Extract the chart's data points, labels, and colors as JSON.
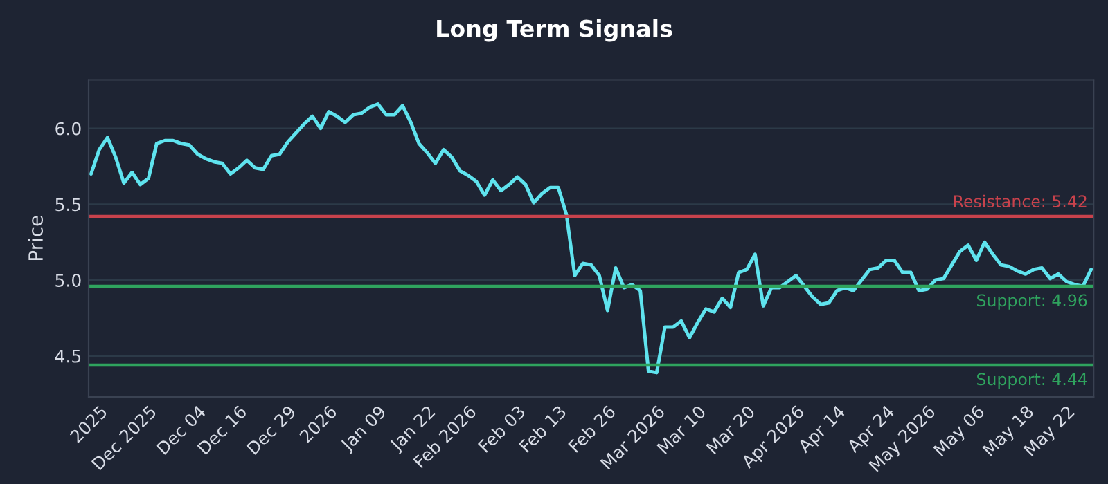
{
  "chart_data": {
    "type": "line",
    "title": "Long Term Signals",
    "ylabel": "Price",
    "categories": [
      null,
      "2025",
      null,
      null,
      null,
      null,
      null,
      "Dec 2025",
      null,
      null,
      null,
      null,
      null,
      "Dec 04",
      null,
      null,
      null,
      null,
      "Dec 16",
      null,
      null,
      null,
      null,
      null,
      "Dec 29",
      null,
      null,
      null,
      null,
      "2026",
      null,
      null,
      null,
      null,
      null,
      "Jan 09",
      null,
      null,
      null,
      null,
      null,
      "Jan 22",
      null,
      null,
      null,
      null,
      "Feb 2026",
      null,
      null,
      null,
      null,
      null,
      "Feb 03",
      null,
      null,
      null,
      null,
      "Feb 13",
      null,
      null,
      null,
      null,
      null,
      "Feb 26",
      null,
      null,
      null,
      null,
      null,
      "Mar 2026",
      null,
      null,
      null,
      null,
      "Mar 10",
      null,
      null,
      null,
      null,
      null,
      "Mar 20",
      null,
      null,
      null,
      null,
      null,
      "Apr 2026",
      null,
      null,
      null,
      null,
      "Apr 14",
      null,
      null,
      null,
      null,
      null,
      "Apr 24",
      null,
      null,
      null,
      null,
      "May 2026",
      null,
      null,
      null,
      null,
      null,
      "May 06",
      null,
      null,
      null,
      null,
      null,
      "May 18",
      null,
      null,
      null,
      null,
      "May 22",
      null,
      null,
      null
    ],
    "series": [
      {
        "color": "#5fe3ee",
        "values": [
          5.7,
          5.86,
          5.94,
          5.81,
          5.64,
          5.71,
          5.63,
          5.67,
          5.9,
          5.92,
          5.92,
          5.9,
          5.89,
          5.83,
          5.8,
          5.78,
          5.77,
          5.7,
          5.74,
          5.79,
          5.74,
          5.73,
          5.82,
          5.83,
          5.91,
          5.97,
          6.03,
          6.08,
          6.0,
          6.11,
          6.08,
          6.04,
          6.09,
          6.1,
          6.14,
          6.16,
          6.09,
          6.09,
          6.15,
          6.04,
          5.9,
          5.84,
          5.77,
          5.86,
          5.81,
          5.72,
          5.69,
          5.65,
          5.56,
          5.66,
          5.59,
          5.63,
          5.68,
          5.63,
          5.51,
          5.57,
          5.61,
          5.61,
          5.43,
          5.03,
          5.11,
          5.1,
          5.03,
          4.8,
          5.08,
          4.95,
          4.97,
          4.93,
          4.4,
          4.39,
          4.69,
          4.69,
          4.73,
          4.62,
          4.72,
          4.81,
          4.79,
          4.88,
          4.82,
          5.05,
          5.07,
          5.17,
          4.83,
          4.95,
          4.95,
          4.99,
          5.03,
          4.96,
          4.89,
          4.84,
          4.85,
          4.93,
          4.95,
          4.93,
          5.0,
          5.07,
          5.08,
          5.13,
          5.13,
          5.05,
          5.05,
          4.93,
          4.94,
          5.0,
          5.01,
          5.1,
          5.19,
          5.23,
          5.13,
          5.25,
          5.17,
          5.1,
          5.09,
          5.06,
          5.04,
          5.07,
          5.08,
          5.01,
          5.04,
          4.99,
          4.97,
          4.96,
          5.07
        ]
      }
    ],
    "ylim": [
      4.23,
      6.32
    ],
    "yticks": [
      {
        "value": 4.5,
        "label": "4.5"
      },
      {
        "value": 5.0,
        "label": "5.0"
      },
      {
        "value": 5.5,
        "label": "5.5"
      },
      {
        "value": 6.0,
        "label": "6.0"
      }
    ],
    "grid": "y",
    "ref_lines": [
      {
        "axis": "y",
        "value": 5.42,
        "label": "Resistance: 5.42",
        "color": "#c8424c"
      },
      {
        "axis": "y",
        "value": 4.96,
        "label": "Support: 4.96",
        "color": "#2fa35e"
      },
      {
        "axis": "y",
        "value": 4.44,
        "label": "Support: 4.44",
        "color": "#2fa35e"
      }
    ]
  }
}
